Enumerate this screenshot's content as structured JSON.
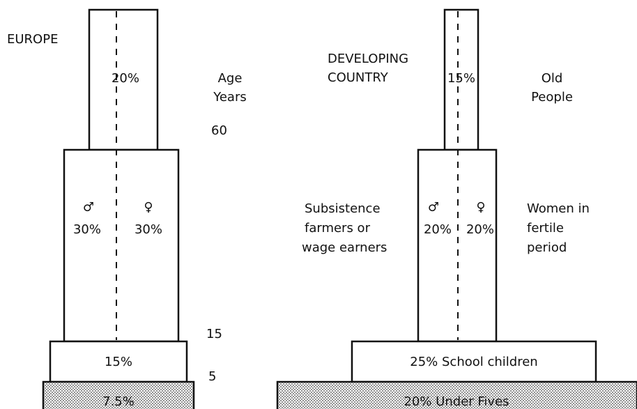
{
  "europe": {
    "title": "EUROPE",
    "old": "20%",
    "male": "♂",
    "female": "♀",
    "male_pct": "30%",
    "female_pct": "30%",
    "school": "15%",
    "under_fives": "7.5%"
  },
  "age_axis": {
    "label": [
      "Age",
      "Years"
    ],
    "ticks": [
      "60",
      "15",
      "5"
    ]
  },
  "developing": {
    "title": [
      "DEVELOPING",
      "COUNTRY"
    ],
    "old": "15%",
    "old_label": [
      "Old",
      "People"
    ],
    "male": "♂",
    "female": "♀",
    "male_pct": "20%",
    "female_pct": "20%",
    "male_label": [
      "Subsistence",
      "farmers or",
      "wage earners"
    ],
    "female_label": [
      "Women in",
      "fertile",
      "period"
    ],
    "school": "25% School children",
    "under_fives": "20% Under Fives"
  }
}
